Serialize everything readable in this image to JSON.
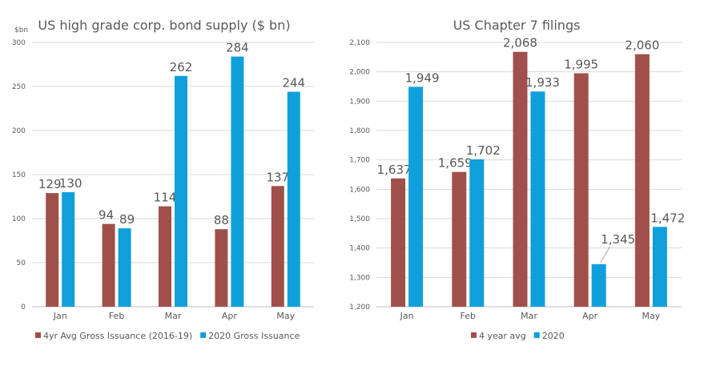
{
  "colors": {
    "avg": "#A0504A",
    "current": "#0FA0DC"
  },
  "chart_data": [
    {
      "type": "bar",
      "title": "US high grade corp. bond supply ($ bn)",
      "unit_label": "$bn",
      "categories": [
        "Jan",
        "Feb",
        "Mar",
        "Apr",
        "May"
      ],
      "ylim": [
        0,
        300
      ],
      "yticks": [
        0,
        50,
        100,
        150,
        200,
        250,
        300
      ],
      "ytick_labels": [
        "0",
        "50",
        "100",
        "150",
        "200",
        "250",
        "300"
      ],
      "grid": true,
      "legend": "bottom",
      "series": [
        {
          "name": "4yr Avg Gross Issuance (2016-19)",
          "values": [
            129,
            94,
            114,
            88,
            137
          ],
          "labels": [
            "129",
            "94",
            "114",
            "88",
            "137"
          ]
        },
        {
          "name": "2020 Gross Issuance",
          "values": [
            130,
            89,
            262,
            284,
            244
          ],
          "labels": [
            "130",
            "89",
            "262",
            "284",
            "244"
          ]
        }
      ]
    },
    {
      "type": "bar",
      "title": "US Chapter 7 filings",
      "categories": [
        "Jan",
        "Feb",
        "Mar",
        "Apr",
        "May"
      ],
      "ylim": [
        1200,
        2100
      ],
      "yticks": [
        1200,
        1300,
        1400,
        1500,
        1600,
        1700,
        1800,
        1900,
        2000,
        2100
      ],
      "ytick_labels": [
        "1,200",
        "1,300",
        "1,400",
        "1,500",
        "1,600",
        "1,700",
        "1,800",
        "1,900",
        "2,000",
        "2,100"
      ],
      "grid": true,
      "legend": "bottom",
      "series": [
        {
          "name": "4 year avg",
          "values": [
            1637,
            1659,
            2068,
            1995,
            2060
          ],
          "labels": [
            "1,637",
            "1,659",
            "2,068",
            "1,995",
            "2,060"
          ]
        },
        {
          "name": "2020",
          "values": [
            1949,
            1702,
            1933,
            1345,
            1472
          ],
          "labels": [
            "1,949",
            "1,702",
            "1,933",
            "1,345",
            "1,472"
          ]
        }
      ]
    }
  ]
}
